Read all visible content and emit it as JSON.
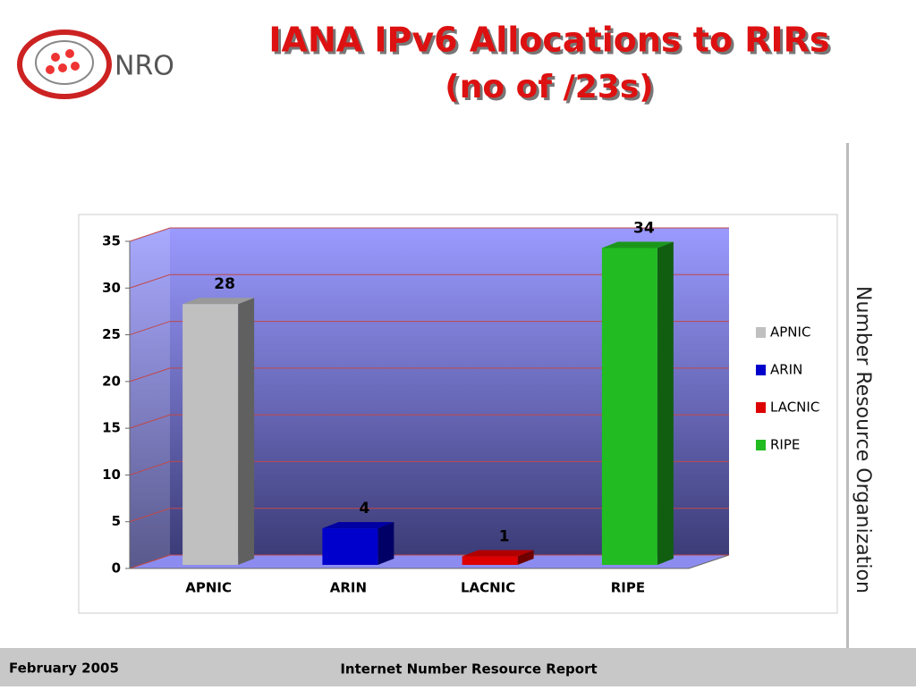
{
  "logo": "NRO",
  "side_text": "Number Resource Organization",
  "footer": {
    "date": "February 2005",
    "report": "Internet Number Resource Report"
  },
  "chart_data": {
    "type": "bar",
    "title": "IANA IPv6 Allocations to RIRs",
    "subtitle": "(no of /23s)",
    "categories": [
      "APNIC",
      "ARIN",
      "LACNIC",
      "RIPE"
    ],
    "values": [
      28,
      4,
      1,
      34
    ],
    "colors": [
      "#c0c0c0",
      "#0000cc",
      "#dd0000",
      "#22bb22"
    ],
    "ylim": [
      0,
      35
    ],
    "yticks": [
      0,
      5,
      10,
      15,
      20,
      25,
      30,
      35
    ],
    "grid": true,
    "legend": "right"
  }
}
